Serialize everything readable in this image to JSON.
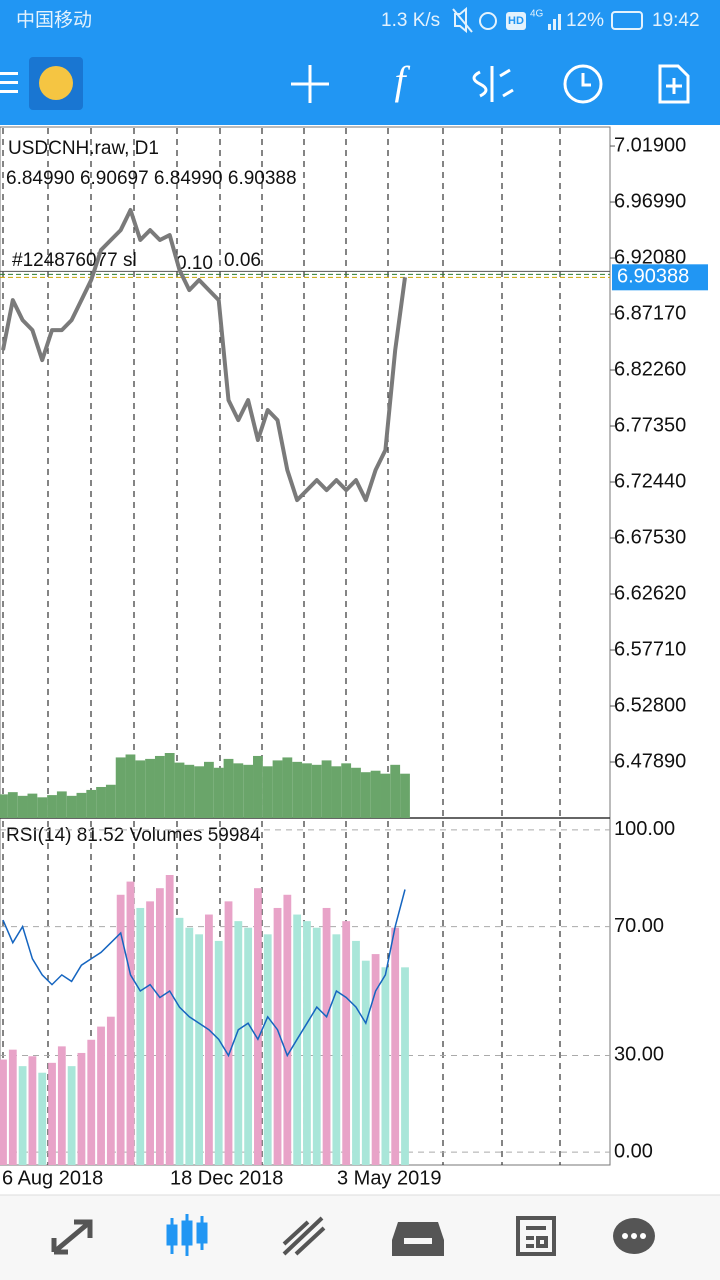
{
  "status_bar": {
    "carrier": "中国移动",
    "speed": "1.3 K/s",
    "hd": "HD",
    "network": "4G",
    "battery": "12%",
    "time": "19:42"
  },
  "chart_data": {
    "type": "line",
    "symbol": "USDCNH.raw, D1",
    "ohlc_text": "6.84990 6.90697 6.84990 6.90388",
    "order_label": "#124876077 sl",
    "order_lots": "0.10",
    "order_value": "0.06",
    "x_labels": [
      "6 Aug 2018",
      "18 Dec 2018",
      "3 May 2019"
    ],
    "series": [
      {
        "name": "USDCNH.raw",
        "color": "#7a7a7a",
        "values": [
          6.8401,
          6.8839,
          6.8664,
          6.8576,
          6.8313,
          6.8576,
          6.8576,
          6.8664,
          6.8839,
          6.9015,
          6.9278,
          6.9366,
          6.9453,
          6.9629,
          6.9366,
          6.9453,
          6.9366,
          6.9409,
          6.9103,
          6.8927,
          6.9015,
          6.8927,
          6.8839,
          6.7962,
          6.7787,
          6.7962,
          6.7612,
          6.7875,
          6.7787,
          6.7349,
          6.7085,
          6.7173,
          6.7261,
          6.7173,
          6.7261,
          6.7173,
          6.7261,
          6.7085,
          6.7349,
          6.7524,
          6.8401,
          6.90388
        ]
      }
    ],
    "current_price": 6.90388,
    "current_price_label": "6.90388",
    "ylim": [
      6.4298,
      7.0348
    ],
    "yticks": [
      {
        "value": 7.019,
        "label": "7.01900"
      },
      {
        "value": 6.9699,
        "label": "6.96990"
      },
      {
        "value": 6.9208,
        "label": "6.92080"
      },
      {
        "value": 6.8717,
        "label": "6.87170"
      },
      {
        "value": 6.8226,
        "label": "6.82260"
      },
      {
        "value": 6.7735,
        "label": "6.77350"
      },
      {
        "value": 6.7244,
        "label": "6.72440"
      },
      {
        "value": 6.6753,
        "label": "6.67530"
      },
      {
        "value": 6.6262,
        "label": "6.62620"
      },
      {
        "value": 6.5771,
        "label": "6.57710"
      },
      {
        "value": 6.528,
        "label": "6.52800"
      },
      {
        "value": 6.4789,
        "label": "6.47890"
      }
    ],
    "indicator_label": "RSI(14) 81.52 Volumes 59984",
    "rsi": {
      "color": "#1565c0",
      "values": [
        72,
        65,
        70,
        60,
        55,
        52,
        55,
        53,
        58,
        60,
        62,
        65,
        68,
        55,
        50,
        52,
        48,
        50,
        45,
        42,
        40,
        38,
        35,
        30,
        38,
        40,
        35,
        42,
        38,
        30,
        35,
        40,
        45,
        42,
        50,
        48,
        45,
        40,
        50,
        55,
        70,
        81.52
      ],
      "ylim": [
        -4,
        103.7
      ],
      "yticks": [
        {
          "value": 100,
          "label": "100.00"
        },
        {
          "value": 70,
          "label": "70.00"
        },
        {
          "value": 30,
          "label": "30.00"
        },
        {
          "value": 0,
          "label": "0.00"
        }
      ]
    },
    "volumes": {
      "up_color": "#e8a3c8",
      "down_color": "#a9e6d9",
      "price_panel_color": "#6aa56a",
      "values": [
        32000,
        35000,
        30000,
        33000,
        28000,
        31000,
        36000,
        30000,
        34000,
        38000,
        42000,
        45000,
        82000,
        86000,
        78000,
        80000,
        84000,
        88000,
        75000,
        72000,
        70000,
        76000,
        68000,
        80000,
        74000,
        72000,
        84000,
        70000,
        78000,
        82000,
        76000,
        74000,
        72000,
        78000,
        70000,
        74000,
        68000,
        62000,
        64000,
        60000,
        72000,
        59984
      ]
    }
  }
}
